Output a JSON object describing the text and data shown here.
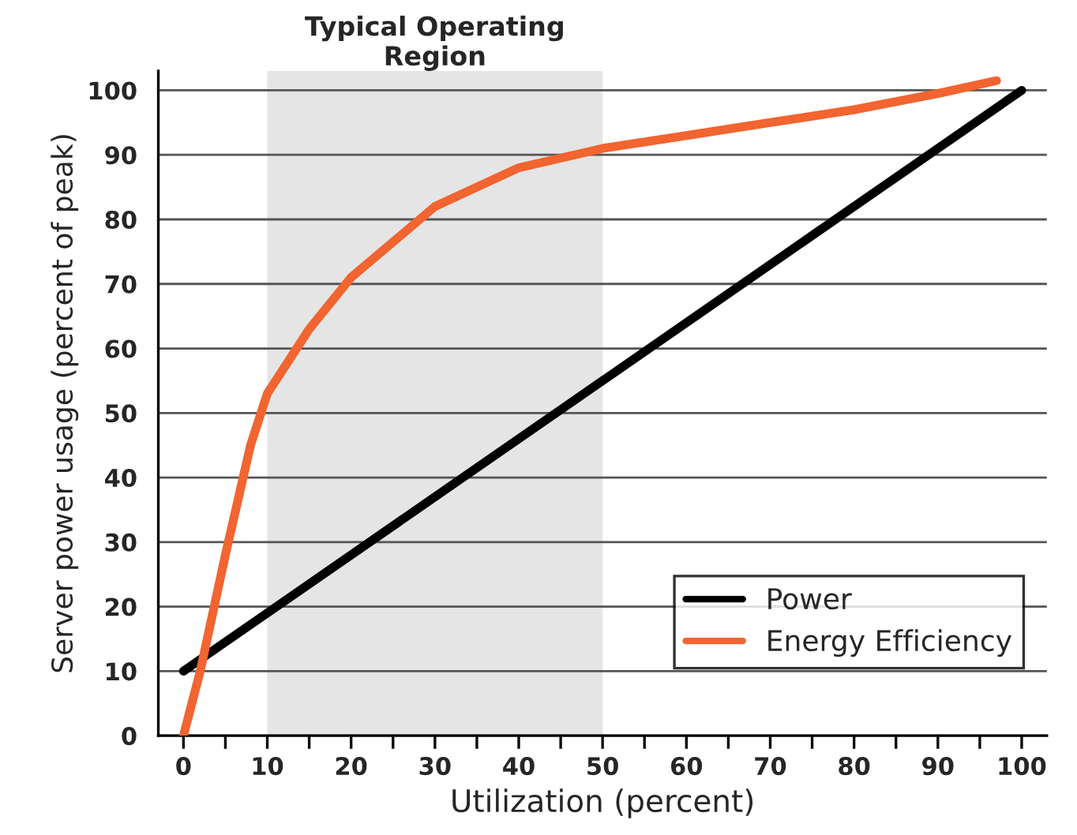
{
  "chart_data": {
    "type": "line",
    "xlabel": "Utilization (percent)",
    "ylabel": "Server power usage (percent of peak)",
    "series": [
      {
        "name": "Power",
        "color": "#000000",
        "x": [
          0,
          100
        ],
        "values": [
          10,
          100
        ]
      },
      {
        "name": "Energy Efficiency",
        "color": "#f26430",
        "x": [
          0,
          2,
          5,
          8,
          10,
          15,
          20,
          30,
          40,
          50,
          60,
          70,
          80,
          90,
          97
        ],
        "values": [
          0,
          10,
          28,
          45,
          53,
          63,
          71,
          82,
          88,
          91,
          93,
          95,
          97,
          99.5,
          101.5
        ]
      }
    ],
    "xlim": [
      -3,
      103
    ],
    "ylim": [
      0,
      103
    ],
    "xticks": [
      0,
      {
        "value": 5,
        "label": null
      },
      10,
      {
        "value": 15,
        "label": null
      },
      20,
      {
        "value": 25,
        "label": null
      },
      30,
      {
        "value": 35,
        "label": null
      },
      40,
      {
        "value": 45,
        "label": null
      },
      50,
      {
        "value": 55,
        "label": null
      },
      60,
      {
        "value": 65,
        "label": null
      },
      70,
      {
        "value": 75,
        "label": null
      },
      80,
      {
        "value": 85,
        "label": null
      },
      90,
      {
        "value": 95,
        "label": null
      },
      100
    ],
    "yticks": [
      0,
      10,
      20,
      30,
      40,
      50,
      60,
      70,
      80,
      90,
      100
    ],
    "bands": [
      {
        "axis": "x",
        "from": 10,
        "to": 50,
        "label": "Typical Operating Region",
        "color": "#e5e5e5"
      }
    ],
    "grid": "y",
    "legend": "bottom right",
    "line_style": "solid",
    "marker": "none"
  }
}
